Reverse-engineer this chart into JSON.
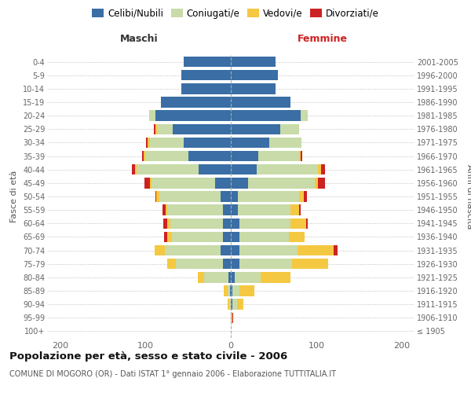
{
  "age_groups": [
    "100+",
    "95-99",
    "90-94",
    "85-89",
    "80-84",
    "75-79",
    "70-74",
    "65-69",
    "60-64",
    "55-59",
    "50-54",
    "45-49",
    "40-44",
    "35-39",
    "30-34",
    "25-29",
    "20-24",
    "15-19",
    "10-14",
    "5-9",
    "0-4"
  ],
  "birth_years": [
    "≤ 1905",
    "1906-1910",
    "1911-1915",
    "1916-1920",
    "1921-1925",
    "1926-1930",
    "1931-1935",
    "1936-1940",
    "1941-1945",
    "1946-1950",
    "1951-1955",
    "1956-1960",
    "1961-1965",
    "1966-1970",
    "1971-1975",
    "1976-1980",
    "1981-1985",
    "1986-1990",
    "1991-1995",
    "1996-2000",
    "2001-2005"
  ],
  "male_celibi": [
    0,
    0,
    0,
    1,
    3,
    9,
    12,
    9,
    9,
    9,
    12,
    18,
    38,
    50,
    55,
    68,
    88,
    82,
    58,
    58,
    55
  ],
  "male_coniugati": [
    0,
    0,
    2,
    3,
    28,
    55,
    65,
    60,
    62,
    65,
    72,
    75,
    72,
    50,
    40,
    18,
    8,
    0,
    0,
    0,
    0
  ],
  "male_vedovi": [
    0,
    0,
    2,
    4,
    8,
    10,
    12,
    5,
    3,
    2,
    3,
    2,
    2,
    2,
    2,
    2,
    0,
    0,
    0,
    0,
    0
  ],
  "male_divorziati": [
    0,
    0,
    0,
    0,
    0,
    0,
    0,
    4,
    5,
    4,
    1,
    6,
    4,
    2,
    2,
    2,
    0,
    0,
    0,
    0,
    0
  ],
  "female_celibi": [
    0,
    0,
    2,
    2,
    5,
    10,
    10,
    10,
    10,
    8,
    8,
    20,
    30,
    32,
    45,
    58,
    82,
    70,
    52,
    55,
    52
  ],
  "female_coniugati": [
    0,
    0,
    5,
    8,
    30,
    62,
    68,
    58,
    60,
    62,
    72,
    78,
    72,
    48,
    38,
    22,
    8,
    0,
    0,
    0,
    0
  ],
  "female_vedovi": [
    0,
    2,
    8,
    18,
    35,
    42,
    42,
    18,
    18,
    10,
    5,
    4,
    4,
    2,
    0,
    0,
    0,
    0,
    0,
    0,
    0
  ],
  "female_divorziati": [
    0,
    1,
    0,
    0,
    0,
    0,
    5,
    0,
    2,
    2,
    4,
    8,
    4,
    2,
    0,
    0,
    0,
    0,
    0,
    0,
    0
  ],
  "colors": {
    "celibi": "#3a6ea5",
    "coniugati": "#c8dba8",
    "vedovi": "#f5c842",
    "divorziati": "#cc2222"
  },
  "title": "Popolazione per età, sesso e stato civile - 2006",
  "subtitle": "COMUNE DI MOGORO (OR) - Dati ISTAT 1° gennaio 2006 - Elaborazione TUTTITALIA.IT",
  "xlabel_left": "Maschi",
  "xlabel_right": "Femmine",
  "ylabel_left": "Fasce di età",
  "ylabel_right": "Anni di nascita",
  "xlim": 215,
  "background_color": "#ffffff",
  "grid_color": "#cccccc"
}
